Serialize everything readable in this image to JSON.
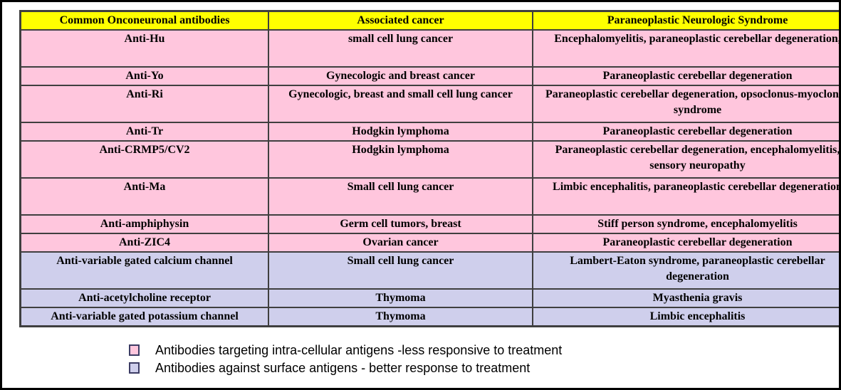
{
  "colors": {
    "header_bg": "#ffff00",
    "intracellular_bg": "#ffc6dd",
    "surface_bg": "#cfcfec",
    "border": "#3f3f3f",
    "frame": "#000000",
    "text": "#000000"
  },
  "table": {
    "columns": [
      "Common Onconeuronal antibodies",
      "Associated cancer",
      "Paraneoplastic Neurologic Syndrome"
    ],
    "rows": [
      {
        "antibody": "Anti-Hu",
        "cancer": "small cell lung cancer",
        "syndrome": "Encephalomyelitis, paraneoplastic cerebellar degeneration,",
        "antigen_type": "intracellular",
        "tall": true
      },
      {
        "antibody": "Anti-Yo",
        "cancer": "Gynecologic and breast cancer",
        "syndrome": "Paraneoplastic cerebellar degeneration",
        "antigen_type": "intracellular",
        "tall": false
      },
      {
        "antibody": "Anti-Ri",
        "cancer": "Gynecologic, breast and small cell lung cancer",
        "syndrome": "Paraneoplastic cerebellar degeneration, opsoclonus-myoclonus syndrome",
        "antigen_type": "intracellular",
        "tall": true
      },
      {
        "antibody": "Anti-Tr",
        "cancer": "Hodgkin lymphoma",
        "syndrome": "Paraneoplastic cerebellar degeneration",
        "antigen_type": "intracellular",
        "tall": false
      },
      {
        "antibody": "Anti-CRMP5/CV2",
        "cancer": "Hodgkin lymphoma",
        "syndrome": "Paraneoplastic cerebellar degeneration, encephalomyelitis, sensory neuropathy",
        "antigen_type": "intracellular",
        "tall": true
      },
      {
        "antibody": "Anti-Ma",
        "cancer": "Small cell lung cancer",
        "syndrome": "Limbic encephalitis, paraneoplastic cerebellar degeneration",
        "antigen_type": "intracellular",
        "tall": true
      },
      {
        "antibody": "Anti-amphiphysin",
        "cancer": "Germ cell tumors, breast",
        "syndrome": "Stiff person syndrome, encephalomyelitis",
        "antigen_type": "intracellular",
        "tall": false
      },
      {
        "antibody": "Anti-ZIC4",
        "cancer": "Ovarian cancer",
        "syndrome": "Paraneoplastic cerebellar degeneration",
        "antigen_type": "intracellular",
        "tall": false
      },
      {
        "antibody": "Anti-variable gated calcium channel",
        "cancer": "Small cell lung cancer",
        "syndrome": "Lambert-Eaton syndrome, paraneoplastic cerebellar degeneration",
        "antigen_type": "surface",
        "tall": true
      },
      {
        "antibody": "Anti-acetylcholine receptor",
        "cancer": "Thymoma",
        "syndrome": "Myasthenia gravis",
        "antigen_type": "surface",
        "tall": false
      },
      {
        "antibody": "Anti-variable gated potassium channel",
        "cancer": "Thymoma",
        "syndrome": "Limbic encephalitis",
        "antigen_type": "surface",
        "tall": false
      }
    ]
  },
  "legend": {
    "items": [
      {
        "swatch": "intracellular",
        "label": "Antibodies targeting intra-cellular antigens -less responsive to treatment"
      },
      {
        "swatch": "surface",
        "label": "Antibodies against surface antigens - better response to treatment"
      }
    ]
  }
}
